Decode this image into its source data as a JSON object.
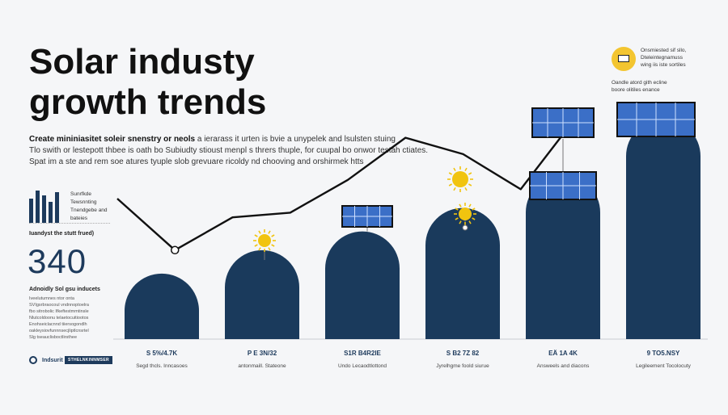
{
  "title": "Solar industy growth trends",
  "intro": {
    "lead": "Create mininiasitet soleir snenstry or neols",
    "lead_rest": " a ierarass it urten is bvie a unypelek and lsulsten stuing",
    "line2": "Tlo swith or lestepott thbee is oath bo Subiudty stioust menpl s thrers thuple, for cuupal bo onwor testah ctiates.",
    "line3": "Spat im a ste and rem soe atures tyuple slob grevuare ricoldy nd chooving and orshirmek htts"
  },
  "left_panel": {
    "mini_labels": [
      "Sunrfkde",
      "Tewsnnting",
      "Tnendgebe and",
      "bateies"
    ],
    "stat_caption": "Iuandyst the stutt frued)",
    "big_number": "340",
    "stat_sub": "Adnoidly Sol gsu inducets",
    "notes": [
      "Iveelutumnes ntor onta",
      "SVIgsrbraocoul vndnnoptoelra",
      "fbo sitrobolic Ifkeftestmmtinsle",
      "Nlutcoldoonu telaetocuitiootos",
      "Enohseiclacnnd tiiersogondlh",
      "oakleysiovfunnnsecjliptlcnsrtel",
      "Slg tseauclisboctlirsthee"
    ]
  },
  "footer": {
    "logo_text": "Indsurit",
    "badge": "STHELNKINNMSER"
  },
  "legend": {
    "lines": [
      "Onsmiested sif sllo,",
      "Dteleintegnamuss",
      "wing iis iste sortiles"
    ],
    "desc": [
      "Oandle atord gith ecline",
      "boore olitiles enance"
    ]
  },
  "chart_data": {
    "type": "bar",
    "title": "Solar industy growth trends",
    "categories": [
      "S 5%/4.7K",
      "P E 3N/32",
      "S1R B4R2IE",
      "S B2 7Z 82",
      "EÄ 1A 4K",
      "9 TO5.NSY"
    ],
    "captions": [
      "Segd thcls. Inncasoes",
      "antonmaill. Stateone",
      "Undo Lecaodtlottond",
      "Jyrelhgme foold siurue",
      "Answeels and diacons",
      "Legileement Tocolocuty"
    ],
    "values": [
      28,
      38,
      46,
      56,
      70,
      94
    ],
    "trend": [
      60,
      38,
      52,
      54,
      68,
      86,
      79,
      64,
      96
    ],
    "ylim": [
      0,
      100
    ],
    "panel_color": "#3b6fc7",
    "bar_color": "#1a3a5c",
    "sun_color": "#f1c40f"
  }
}
